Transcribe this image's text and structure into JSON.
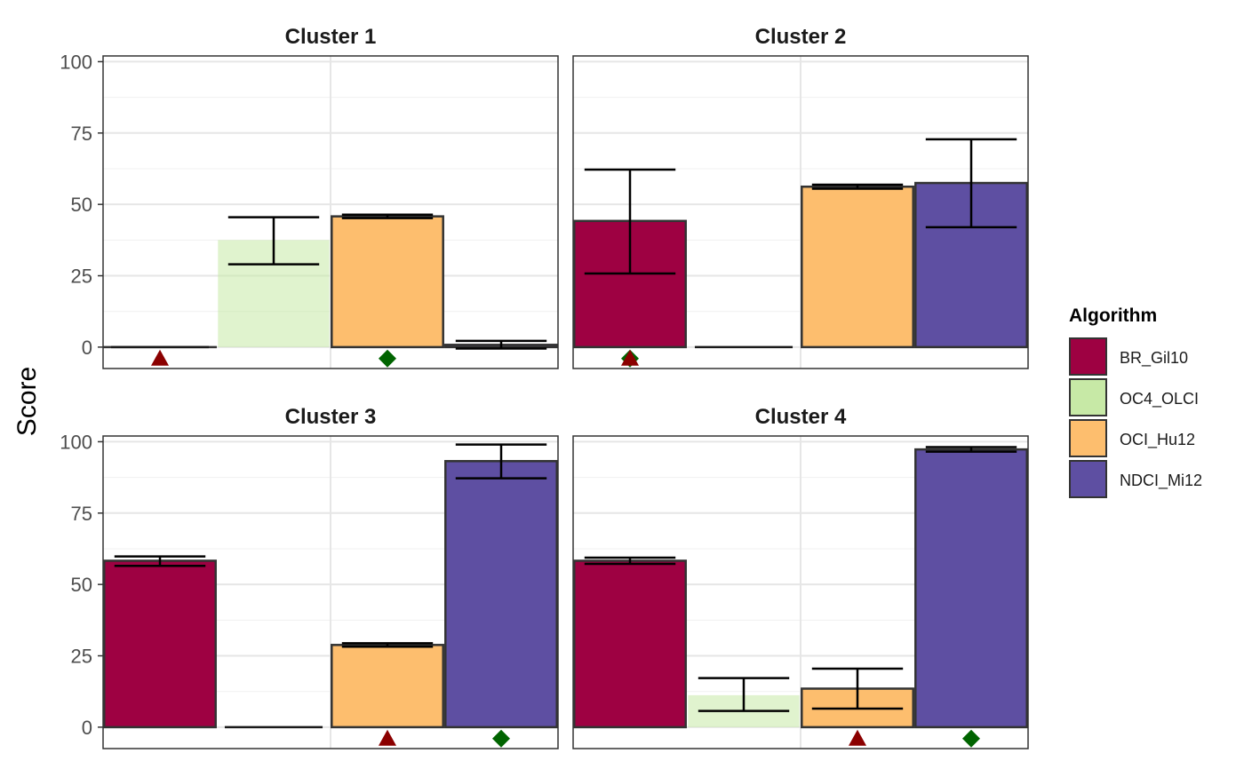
{
  "chart_data": {
    "type": "bar",
    "ylabel": "Score",
    "ylim": [
      -7.5,
      102
    ],
    "yticks": [
      0,
      25,
      50,
      75,
      100
    ],
    "grid": true,
    "legend": {
      "title": "Algorithm",
      "position": "right"
    },
    "series": [
      {
        "name": "BR_Gil10",
        "color": "#9E0142",
        "alpha": 1.0
      },
      {
        "name": "OC4_OLCI",
        "color": "#C7E9A6",
        "alpha": 0.55
      },
      {
        "name": "OCI_Hu12",
        "color": "#FDBE6E",
        "alpha": 1.0
      },
      {
        "name": "NDCI_Mi12",
        "color": "#5E4FA2",
        "alpha": 1.0
      }
    ],
    "panels": [
      {
        "title": "Cluster 1",
        "bars": [
          {
            "algorithm": "BR_Gil10",
            "value": 0,
            "err_low": 0,
            "err_high": 0
          },
          {
            "algorithm": "OC4_OLCI",
            "value": 37.5,
            "err_low": 29,
            "err_high": 45.5
          },
          {
            "algorithm": "OCI_Hu12",
            "value": 45.8,
            "err_low": 45.2,
            "err_high": 46.4
          },
          {
            "algorithm": "NDCI_Mi12",
            "value": 0.8,
            "err_low": -0.5,
            "err_high": 2.2
          }
        ],
        "markers": [
          {
            "shape": "triangle",
            "color": "#8B0000",
            "position": 0,
            "y": -4
          },
          {
            "shape": "diamond",
            "color": "#006400",
            "position": 2,
            "y": -4
          }
        ]
      },
      {
        "title": "Cluster 2",
        "bars": [
          {
            "algorithm": "BR_Gil10",
            "value": 44.2,
            "err_low": 25.8,
            "err_high": 62.2
          },
          {
            "algorithm": "OC4_OLCI",
            "value": 0,
            "err_low": 0,
            "err_high": 0
          },
          {
            "algorithm": "OCI_Hu12",
            "value": 56.2,
            "err_low": 55.5,
            "err_high": 56.9
          },
          {
            "algorithm": "NDCI_Mi12",
            "value": 57.5,
            "err_low": 42,
            "err_high": 72.8
          }
        ],
        "markers": [
          {
            "shape": "diamond",
            "color": "#006400",
            "position": 0,
            "y": -4
          },
          {
            "shape": "triangle",
            "color": "#8B0000",
            "position": 0,
            "y": -4
          }
        ]
      },
      {
        "title": "Cluster 3",
        "bars": [
          {
            "algorithm": "BR_Gil10",
            "value": 58.3,
            "err_low": 56.5,
            "err_high": 59.8
          },
          {
            "algorithm": "OC4_OLCI",
            "value": 0,
            "err_low": 0,
            "err_high": 0
          },
          {
            "algorithm": "OCI_Hu12",
            "value": 28.8,
            "err_low": 28.2,
            "err_high": 29.4
          },
          {
            "algorithm": "NDCI_Mi12",
            "value": 93.2,
            "err_low": 87.2,
            "err_high": 99
          }
        ],
        "markers": [
          {
            "shape": "triangle",
            "color": "#8B0000",
            "position": 2,
            "y": -4
          },
          {
            "shape": "diamond",
            "color": "#006400",
            "position": 3,
            "y": -4
          }
        ]
      },
      {
        "title": "Cluster 4",
        "bars": [
          {
            "algorithm": "BR_Gil10",
            "value": 58.3,
            "err_low": 57.2,
            "err_high": 59.4
          },
          {
            "algorithm": "OC4_OLCI",
            "value": 11.2,
            "err_low": 5.7,
            "err_high": 17.2
          },
          {
            "algorithm": "OCI_Hu12",
            "value": 13.5,
            "err_low": 6.5,
            "err_high": 20.5
          },
          {
            "algorithm": "NDCI_Mi12",
            "value": 97.3,
            "err_low": 96.5,
            "err_high": 98.1
          }
        ],
        "markers": [
          {
            "shape": "triangle",
            "color": "#8B0000",
            "position": 2,
            "y": -4
          },
          {
            "shape": "diamond",
            "color": "#006400",
            "position": 3,
            "y": -4
          }
        ]
      }
    ]
  }
}
